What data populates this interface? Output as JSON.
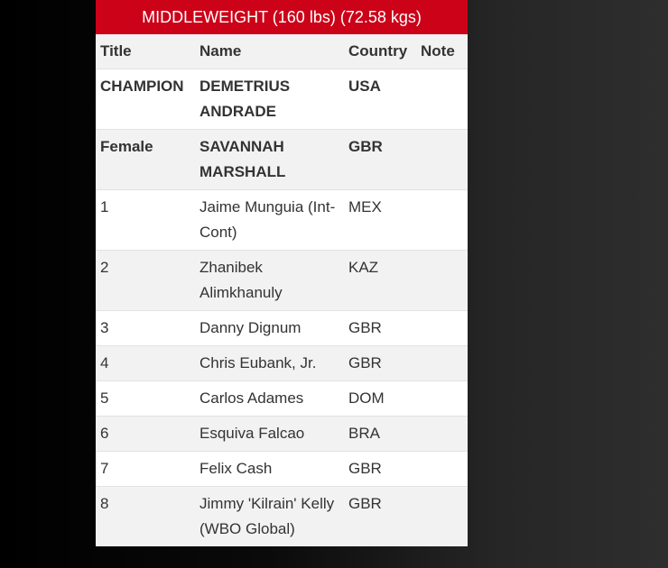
{
  "division_title": "MIDDLEWEIGHT (160 lbs) (72.58 kgs)",
  "columns": [
    "Title",
    "Name",
    "Country",
    "Note"
  ],
  "rows": [
    {
      "title": "CHAMPION",
      "name": "DEMETRIUS ANDRADE",
      "country": "USA",
      "note": ""
    },
    {
      "title": "Female",
      "name": "SAVANNAH MARSHALL",
      "country": "GBR",
      "note": ""
    },
    {
      "title": "1",
      "name": "Jaime Munguia (Int-Cont)",
      "country": "MEX",
      "note": ""
    },
    {
      "title": "2",
      "name": "Zhanibek Alimkhanuly",
      "country": "KAZ",
      "note": ""
    },
    {
      "title": "3",
      "name": "Danny Dignum",
      "country": "GBR",
      "note": ""
    },
    {
      "title": "4",
      "name": "Chris Eubank, Jr.",
      "country": "GBR",
      "note": ""
    },
    {
      "title": "5",
      "name": "Carlos Adames",
      "country": "DOM",
      "note": ""
    },
    {
      "title": "6",
      "name": "Esquiva Falcao",
      "country": "BRA",
      "note": ""
    },
    {
      "title": "7",
      "name": "Felix Cash",
      "country": "GBR",
      "note": ""
    },
    {
      "title": "8",
      "name": "Jimmy 'Kilrain' Kelly (WBO Global)",
      "country": "GBR",
      "note": ""
    }
  ],
  "colors": {
    "header_bar": "#cc0218",
    "row_alt": "#f2f2f2"
  }
}
